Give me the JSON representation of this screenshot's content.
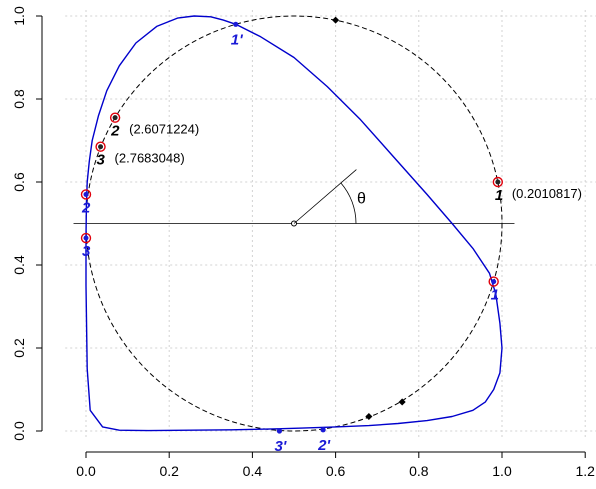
{
  "chart_data": {
    "type": "line",
    "xlim": [
      0,
      1.2
    ],
    "ylim": [
      0,
      1.0
    ],
    "grid": true,
    "x_ticks": [
      "0.0",
      "0.2",
      "0.4",
      "0.6",
      "0.8",
      "1.0",
      "1.2"
    ],
    "y_ticks": [
      "0.0",
      "0.2",
      "0.4",
      "0.6",
      "0.8",
      "1.0"
    ],
    "circle": {
      "cx": 0.5,
      "cy": 0.5,
      "r": 0.5,
      "style": "dashed"
    },
    "horizontal_line": {
      "y": 0.5,
      "x": [
        -0.03,
        1.03
      ]
    },
    "theta_ray": {
      "from": [
        0.5,
        0.5
      ],
      "to": [
        0.65,
        0.63
      ],
      "label": "θ"
    },
    "circle_markers": [
      {
        "x": 0.6,
        "y": 0.99
      },
      {
        "x": 0.68,
        "y": 0.035
      },
      {
        "x": 0.76,
        "y": 0.07
      }
    ],
    "curve": {
      "color": "#0000cc",
      "x": [
        0.0,
        0.001,
        0.003,
        0.008,
        0.015,
        0.03,
        0.05,
        0.08,
        0.12,
        0.17,
        0.22,
        0.26,
        0.3,
        0.33,
        0.36,
        0.42,
        0.5,
        0.58,
        0.66,
        0.74,
        0.82,
        0.88,
        0.93,
        0.97,
        0.985,
        0.995,
        1.0,
        0.995,
        0.98,
        0.96,
        0.93,
        0.88,
        0.82,
        0.75,
        0.68,
        0.6,
        0.52,
        0.45,
        0.35,
        0.25,
        0.15,
        0.08,
        0.04,
        0.01,
        0.003,
        0.0,
        0.0
      ],
      "y": [
        0.47,
        0.54,
        0.6,
        0.65,
        0.7,
        0.76,
        0.82,
        0.88,
        0.935,
        0.975,
        0.995,
        1.0,
        0.998,
        0.99,
        0.98,
        0.95,
        0.9,
        0.83,
        0.75,
        0.66,
        0.57,
        0.5,
        0.44,
        0.38,
        0.33,
        0.26,
        0.2,
        0.14,
        0.1,
        0.07,
        0.05,
        0.035,
        0.025,
        0.018,
        0.013,
        0.01,
        0.007,
        0.005,
        0.003,
        0.002,
        0.001,
        0.002,
        0.01,
        0.05,
        0.15,
        0.35,
        0.47
      ]
    },
    "points": [
      {
        "x": 0.99,
        "y": 0.6,
        "label": "1",
        "style": "black",
        "ann": "(0.2010817)",
        "ann_dx": 14,
        "label_dx": -3,
        "label_dy": 18
      },
      {
        "x": 0.07,
        "y": 0.755,
        "label": "2",
        "style": "black",
        "ann": "(2.6071224)",
        "ann_dx": 14,
        "label_dx": -4,
        "label_dy": 18
      },
      {
        "x": 0.035,
        "y": 0.685,
        "label": "3",
        "style": "black",
        "ann": "(2.7683048)",
        "ann_dx": 14,
        "label_dx": -4,
        "label_dy": 18
      },
      {
        "x": 0.98,
        "y": 0.36,
        "label": "1",
        "style": "blue",
        "label_dx": -3,
        "label_dy": 18
      },
      {
        "x": 0.0,
        "y": 0.57,
        "label": "2",
        "style": "blue",
        "label_dx": -4,
        "label_dy": 18
      },
      {
        "x": 0.0,
        "y": 0.465,
        "label": "3",
        "style": "blue",
        "label_dx": -4,
        "label_dy": 18
      },
      {
        "x": 0.36,
        "y": 0.98,
        "label": "1'",
        "style": "prime",
        "label_dx": -5,
        "label_dy": 20
      },
      {
        "x": 0.57,
        "y": 0.003,
        "label": "2'",
        "style": "prime",
        "label_dx": -5,
        "label_dy": 20
      },
      {
        "x": 0.465,
        "y": 0.0,
        "label": "3'",
        "style": "prime",
        "label_dx": -5,
        "label_dy": 20
      }
    ]
  }
}
